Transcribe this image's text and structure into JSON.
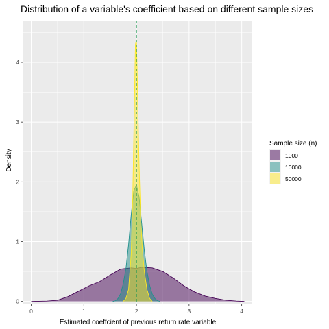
{
  "chart_data": {
    "type": "area",
    "title": "Distribution of a variable's coefficient  based on different sample sizes",
    "xlabel": "Estimated coeffcient of previous return rate variable",
    "ylabel": "Density",
    "xlim": [
      -0.15,
      4.2
    ],
    "ylim": [
      -0.05,
      4.7
    ],
    "x_ticks": [
      0,
      1,
      2,
      3,
      4
    ],
    "y_ticks": [
      0,
      1,
      2,
      3,
      4
    ],
    "grid": true,
    "reference_line": {
      "x": 2.0,
      "style": "dashed",
      "color": "#1a9850"
    },
    "legend": {
      "title": "Sample size (n)",
      "position": "right"
    },
    "series": [
      {
        "name": "1000",
        "color": "#440154",
        "points": [
          [
            0.0,
            0.0
          ],
          [
            0.3,
            0.005
          ],
          [
            0.5,
            0.02
          ],
          [
            0.7,
            0.08
          ],
          [
            0.9,
            0.17
          ],
          [
            1.1,
            0.26
          ],
          [
            1.3,
            0.33
          ],
          [
            1.5,
            0.44
          ],
          [
            1.7,
            0.54
          ],
          [
            1.9,
            0.56
          ],
          [
            2.0,
            0.55
          ],
          [
            2.1,
            0.57
          ],
          [
            2.3,
            0.56
          ],
          [
            2.5,
            0.5
          ],
          [
            2.7,
            0.39
          ],
          [
            2.9,
            0.26
          ],
          [
            3.1,
            0.16
          ],
          [
            3.3,
            0.09
          ],
          [
            3.5,
            0.05
          ],
          [
            3.7,
            0.02
          ],
          [
            3.9,
            0.005
          ],
          [
            4.05,
            0.0
          ]
        ]
      },
      {
        "name": "10000",
        "color": "#21908c",
        "points": [
          [
            1.55,
            0.0
          ],
          [
            1.6,
            0.01
          ],
          [
            1.65,
            0.05
          ],
          [
            1.7,
            0.13
          ],
          [
            1.75,
            0.3
          ],
          [
            1.8,
            0.55
          ],
          [
            1.85,
            0.95
          ],
          [
            1.9,
            1.45
          ],
          [
            1.95,
            1.85
          ],
          [
            2.0,
            1.95
          ],
          [
            2.05,
            1.75
          ],
          [
            2.1,
            1.3
          ],
          [
            2.15,
            0.85
          ],
          [
            2.2,
            0.5
          ],
          [
            2.25,
            0.27
          ],
          [
            2.3,
            0.12
          ],
          [
            2.35,
            0.05
          ],
          [
            2.4,
            0.01
          ],
          [
            2.45,
            0.0
          ]
        ]
      },
      {
        "name": "50000",
        "color": "#fde725",
        "points": [
          [
            1.75,
            0.0
          ],
          [
            1.8,
            0.05
          ],
          [
            1.85,
            0.2
          ],
          [
            1.9,
            0.8
          ],
          [
            1.93,
            1.8
          ],
          [
            1.96,
            3.3
          ],
          [
            1.98,
            4.3
          ],
          [
            2.0,
            4.38
          ],
          [
            2.02,
            3.6
          ],
          [
            2.05,
            2.3
          ],
          [
            2.08,
            1.4
          ],
          [
            2.11,
            0.9
          ],
          [
            2.15,
            0.5
          ],
          [
            2.2,
            0.2
          ],
          [
            2.25,
            0.05
          ],
          [
            2.3,
            0.0
          ]
        ]
      }
    ]
  }
}
